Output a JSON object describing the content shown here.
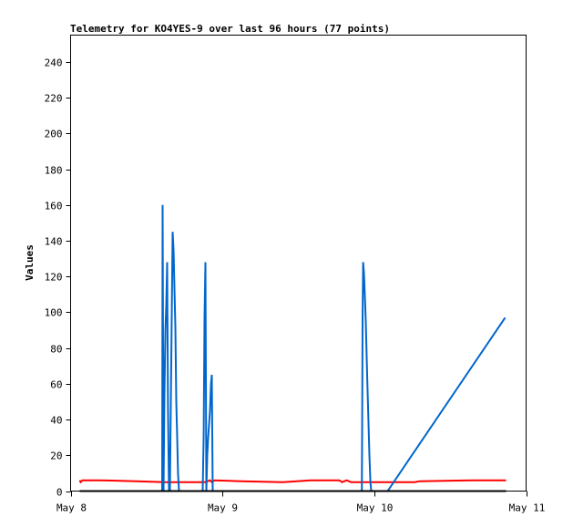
{
  "chart_data": {
    "type": "line",
    "title": "Telemetry for KO4YES-9 over last 96 hours (77 points)",
    "xlabel": "",
    "ylabel": "Values",
    "xlim": [
      "May 8 00:00",
      "May 11 00:00"
    ],
    "ylim": [
      0,
      255
    ],
    "xticks": [
      "May 8",
      "May 9",
      "May 10",
      "May 11"
    ],
    "yticks": [
      0,
      20,
      40,
      60,
      80,
      100,
      120,
      140,
      160,
      180,
      200,
      220,
      240
    ],
    "grid": false,
    "legend": "none",
    "series": [
      {
        "color": "#ff0000",
        "points": [
          [
            "May 8 01:26",
            6
          ],
          [
            "May 8 01:35",
            5
          ],
          [
            "May 8 01:52",
            6
          ],
          [
            "May 8 04:45",
            6
          ],
          [
            "May 8 10:31",
            5.5
          ],
          [
            "May 8 14:50",
            5
          ],
          [
            "May 8 21:19",
            5
          ],
          [
            "May 8 22:02",
            6
          ],
          [
            "May 8 22:19",
            5
          ],
          [
            "May 8 22:45",
            6
          ],
          [
            "May 9 03:04",
            5.5
          ],
          [
            "May 9 09:33",
            5
          ],
          [
            "May 9 13:52",
            6
          ],
          [
            "May 9 18:29",
            6
          ],
          [
            "May 9 18:55",
            5
          ],
          [
            "May 9 19:38",
            6
          ],
          [
            "May 9 20:21",
            5
          ],
          [
            "May 10 06:26",
            5
          ],
          [
            "May 10 07:09",
            5.5
          ],
          [
            "May 10 15:48",
            6
          ],
          [
            "May 10 20:50",
            6
          ]
        ]
      },
      {
        "color": "#0066cc",
        "points": [
          [
            "May 8 14:28",
            0
          ],
          [
            "May 8 14:33",
            160
          ],
          [
            "May 8 14:37",
            80
          ],
          [
            "May 8 14:41",
            0
          ],
          [
            "May 8 14:50",
            55
          ],
          [
            "May 8 14:59",
            90
          ],
          [
            "May 8 15:07",
            104
          ],
          [
            "May 8 15:16",
            128
          ],
          [
            "May 8 15:24",
            47
          ],
          [
            "May 8 15:33",
            0
          ],
          [
            "May 8 15:42",
            0
          ],
          [
            "May 8 16:08",
            145
          ],
          [
            "May 8 16:16",
            135
          ],
          [
            "May 8 16:25",
            113
          ],
          [
            "May 8 16:34",
            92
          ],
          [
            "May 8 16:42",
            50
          ],
          [
            "May 8 16:51",
            30
          ],
          [
            "May 8 16:59",
            10
          ],
          [
            "May 8 17:08",
            0
          ],
          [
            "May 8 20:53",
            0
          ],
          [
            "May 8 21:02",
            32
          ],
          [
            "May 8 21:10",
            97
          ],
          [
            "May 8 21:19",
            128
          ],
          [
            "May 8 21:27",
            0
          ],
          [
            "May 8 21:36",
            20
          ],
          [
            "May 8 21:45",
            30
          ],
          [
            "May 8 22:02",
            45
          ],
          [
            "May 8 22:11",
            60
          ],
          [
            "May 8 22:19",
            65
          ],
          [
            "May 8 22:28",
            0
          ],
          [
            "May 9 22:02",
            0
          ],
          [
            "May 9 22:05",
            32
          ],
          [
            "May 9 22:09",
            96
          ],
          [
            "May 9 22:14",
            128
          ],
          [
            "May 9 22:22",
            122
          ],
          [
            "May 9 22:31",
            109
          ],
          [
            "May 9 22:39",
            95
          ],
          [
            "May 9 22:48",
            75
          ],
          [
            "May 9 22:57",
            56
          ],
          [
            "May 9 23:05",
            38
          ],
          [
            "May 9 23:14",
            20
          ],
          [
            "May 9 23:23",
            5
          ],
          [
            "May 9 23:31",
            0
          ],
          [
            "May 10 02:07",
            0
          ],
          [
            "May 10 20:41",
            97
          ]
        ]
      },
      {
        "color": "#000000",
        "points": [
          [
            "May 8 01:26",
            0
          ],
          [
            "May 10 20:50",
            0
          ]
        ]
      }
    ]
  }
}
